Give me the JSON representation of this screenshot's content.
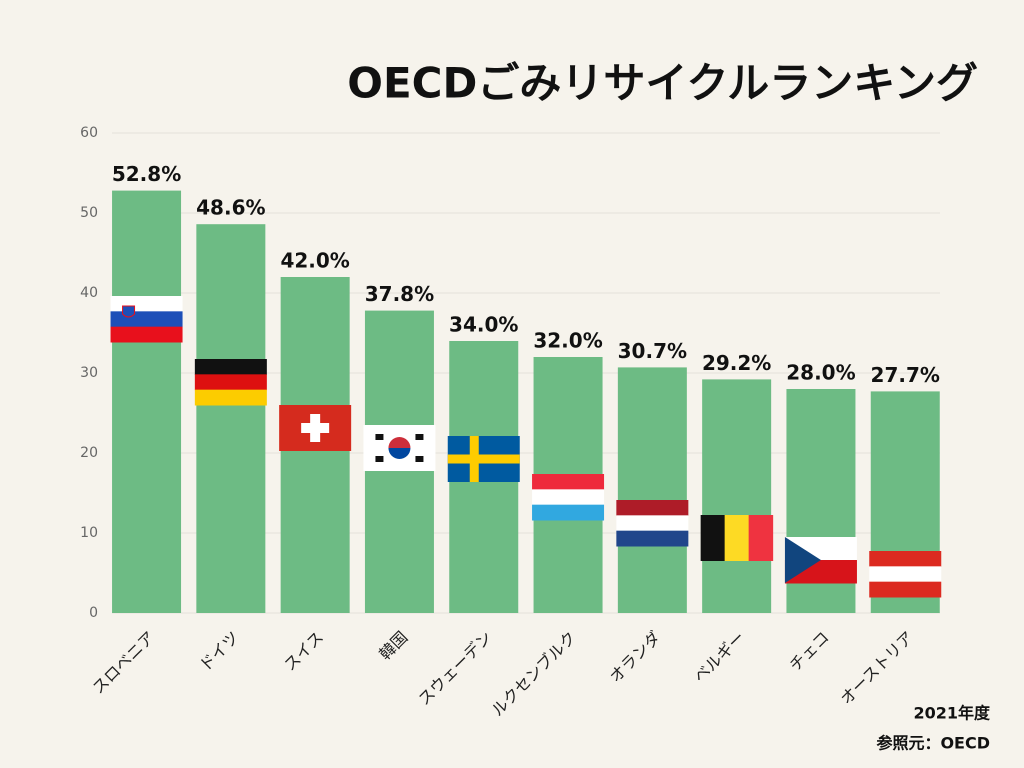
{
  "chart_data": {
    "type": "bar",
    "title": "OECDごみリサイクルランキング",
    "categories": [
      "スロベニア",
      "ドイツ",
      "スイス",
      "韓国",
      "スウェーデン",
      "ルクセンブルク",
      "オランダ",
      "ベルギー",
      "チェコ",
      "オーストリア"
    ],
    "values": [
      52.8,
      48.6,
      42.0,
      37.8,
      34.0,
      32.0,
      30.7,
      29.2,
      28.0,
      27.7
    ],
    "value_labels": [
      "52.8%",
      "48.6%",
      "42.0%",
      "37.8%",
      "34.0%",
      "32.0%",
      "30.7%",
      "29.2%",
      "28.0%",
      "27.7%"
    ],
    "color": "#6dbb84",
    "ylim": [
      0,
      60
    ],
    "yticks": [
      0,
      10,
      20,
      30,
      40,
      50,
      60
    ],
    "grid": true,
    "notes": [
      "2021年度",
      "参照元：OECD"
    ]
  }
}
